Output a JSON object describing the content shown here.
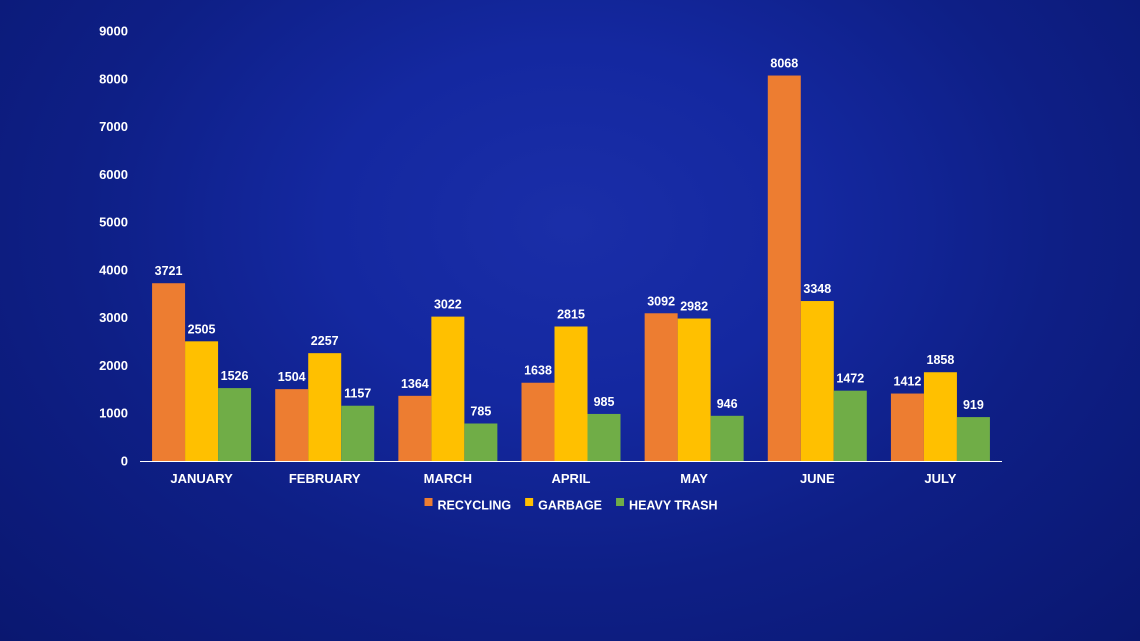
{
  "chart_data": {
    "type": "bar",
    "title": "",
    "xlabel": "",
    "ylabel": "",
    "categories": [
      "JANUARY",
      "FEBRUARY",
      "MARCH",
      "APRIL",
      "MAY",
      "JUNE",
      "JULY"
    ],
    "series": [
      {
        "name": "RECYCLING",
        "color": "#ed7d31",
        "values": [
          3721,
          1504,
          1364,
          1638,
          3092,
          8068,
          1412
        ]
      },
      {
        "name": "GARBAGE",
        "color": "#ffc000",
        "values": [
          2505,
          2257,
          3022,
          2815,
          2982,
          3348,
          1858
        ]
      },
      {
        "name": "HEAVY TRASH",
        "color": "#70ad47",
        "values": [
          1526,
          1157,
          785,
          985,
          946,
          1472,
          919
        ]
      }
    ],
    "ylim": [
      0,
      9000
    ],
    "yticks": [
      0,
      1000,
      2000,
      3000,
      4000,
      5000,
      6000,
      7000,
      8000,
      9000
    ],
    "grid": false,
    "data_labels": true,
    "legend_position": "bottom"
  }
}
